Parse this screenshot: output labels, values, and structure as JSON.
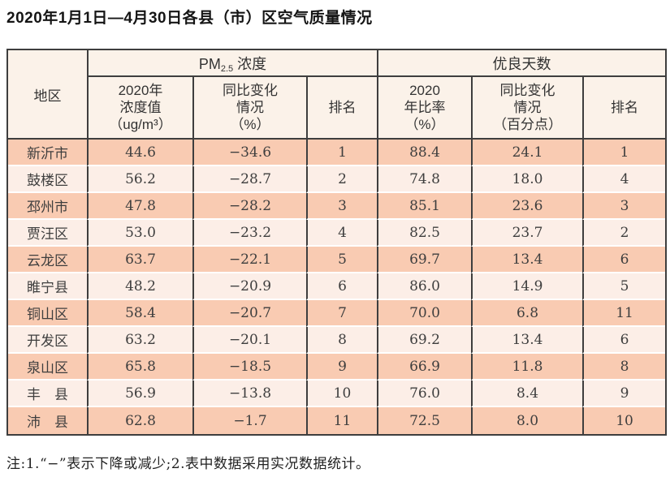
{
  "title": "2020年1月1日—4月30日各县（市）区空气质量情况",
  "table": {
    "header": {
      "region": "地区",
      "pm25_group": {
        "prefix": "PM",
        "sub": "2.5",
        "suffix": " 浓度"
      },
      "good_days_group": "优良天数",
      "pm25_value": "2020年\n浓度值\n（ug/m³）",
      "pm25_change": "同比变化\n情况\n（%）",
      "pm25_rank": "排名",
      "days_rate": "2020\n年比率\n（%）",
      "days_change": "同比变化\n情况\n（百分点）",
      "days_rank": "排名"
    },
    "rows": [
      {
        "region": "新沂市",
        "pm_value": "44.6",
        "pm_change": "−34.6",
        "pm_rank": "1",
        "days_rate": "88.4",
        "days_change": "24.1",
        "days_rank": "1"
      },
      {
        "region": "鼓楼区",
        "pm_value": "56.2",
        "pm_change": "−28.7",
        "pm_rank": "2",
        "days_rate": "74.8",
        "days_change": "18.0",
        "days_rank": "4"
      },
      {
        "region": "邳州市",
        "pm_value": "47.8",
        "pm_change": "−28.2",
        "pm_rank": "3",
        "days_rate": "85.1",
        "days_change": "23.6",
        "days_rank": "3"
      },
      {
        "region": "贾汪区",
        "pm_value": "53.0",
        "pm_change": "−23.2",
        "pm_rank": "4",
        "days_rate": "82.5",
        "days_change": "23.7",
        "days_rank": "2"
      },
      {
        "region": "云龙区",
        "pm_value": "63.7",
        "pm_change": "−22.1",
        "pm_rank": "5",
        "days_rate": "69.7",
        "days_change": "13.4",
        "days_rank": "6"
      },
      {
        "region": "睢宁县",
        "pm_value": "48.2",
        "pm_change": "−20.9",
        "pm_rank": "6",
        "days_rate": "86.0",
        "days_change": "14.9",
        "days_rank": "5"
      },
      {
        "region": "铜山区",
        "pm_value": "58.4",
        "pm_change": "−20.7",
        "pm_rank": "7",
        "days_rate": "70.0",
        "days_change": "6.8",
        "days_rank": "11"
      },
      {
        "region": "开发区",
        "pm_value": "63.2",
        "pm_change": "−20.1",
        "pm_rank": "8",
        "days_rate": "69.2",
        "days_change": "13.4",
        "days_rank": "6"
      },
      {
        "region": "泉山区",
        "pm_value": "65.8",
        "pm_change": "−18.5",
        "pm_rank": "9",
        "days_rate": "66.9",
        "days_change": "11.8",
        "days_rank": "8"
      },
      {
        "region": "丰　县",
        "pm_value": "56.9",
        "pm_change": "−13.8",
        "pm_rank": "10",
        "days_rate": "76.0",
        "days_change": "8.4",
        "days_rank": "9"
      },
      {
        "region": "沛　县",
        "pm_value": "62.8",
        "pm_change": "−1.7",
        "pm_rank": "11",
        "days_rate": "72.5",
        "days_change": "8.0",
        "days_rank": "10"
      }
    ]
  },
  "note": "注:1.“−”表示下降或减少;2.表中数据采用实况数据统计。",
  "colors": {
    "row_odd": "#f9cbb2",
    "row_even": "#fceee7",
    "header_bg": "#fbf2e9",
    "border": "#3e3e3e",
    "text": "#3a3a3a"
  }
}
